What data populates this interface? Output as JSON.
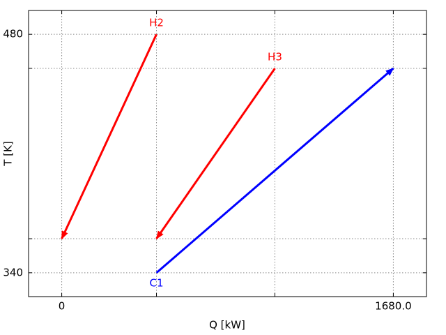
{
  "chart_data": {
    "type": "arrow",
    "xlabel": "Q [kW]",
    "ylabel": "T [K]",
    "xlim": [
      -168,
      1848
    ],
    "ylim": [
      326,
      494
    ],
    "xticks": [
      0,
      {
        "value": 1680,
        "label": "1680.0"
      }
    ],
    "xticks_unlabeled": [
      480,
      1080
    ],
    "yticks": [
      340,
      480
    ],
    "yticks_unlabeled": [
      360,
      460
    ],
    "grid": true,
    "series": [
      {
        "name": "H2",
        "color": "#ff0000",
        "x": [
          480,
          0
        ],
        "values": [
          480,
          360
        ]
      },
      {
        "name": "H3",
        "color": "#ff0000",
        "x": [
          1080,
          480
        ],
        "values": [
          460,
          360
        ]
      },
      {
        "name": "C1",
        "color": "#0000ff",
        "x": [
          480,
          1680
        ],
        "values": [
          340,
          460
        ]
      }
    ]
  }
}
